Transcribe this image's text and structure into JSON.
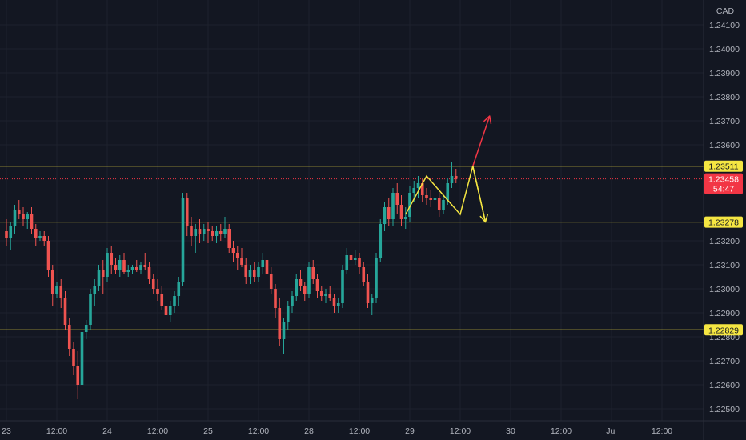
{
  "chart_data": {
    "type": "candlestick",
    "currency": "CAD",
    "y_range": [
      1.2247,
      1.2418
    ],
    "y_ticks": [
      "1.24100",
      "1.24000",
      "1.23900",
      "1.23800",
      "1.23700",
      "1.23600",
      "1.23200",
      "1.23100",
      "1.23000",
      "1.22900",
      "1.22800",
      "1.22700",
      "1.22600",
      "1.22500"
    ],
    "x_ticks": [
      {
        "label": "23",
        "t": 0
      },
      {
        "label": "12:00",
        "t": 12
      },
      {
        "label": "24",
        "t": 24
      },
      {
        "label": "12:00",
        "t": 36
      },
      {
        "label": "25",
        "t": 48
      },
      {
        "label": "12:00",
        "t": 60
      },
      {
        "label": "28",
        "t": 72
      },
      {
        "label": "12:00",
        "t": 84
      },
      {
        "label": "29",
        "t": 96
      },
      {
        "label": "12:00",
        "t": 108
      },
      {
        "label": "30",
        "t": 120
      },
      {
        "label": "12:00",
        "t": 132
      },
      {
        "label": "Jul",
        "t": 144
      },
      {
        "label": "12:00",
        "t": 156
      }
    ],
    "horizontal_levels": [
      {
        "value": 1.23511,
        "label": "1.23511",
        "color": "#f5e642"
      },
      {
        "value": 1.23278,
        "label": "1.23278",
        "color": "#f5e642"
      },
      {
        "value": 1.22829,
        "label": "1.22829",
        "color": "#f5e642"
      }
    ],
    "current_price": {
      "value": 1.23458,
      "label": "1.23458",
      "countdown": "54:47",
      "color": "#f23645"
    },
    "candles": [
      [
        1.2324,
        1.2329,
        1.2318,
        1.2321
      ],
      [
        1.2321,
        1.2328,
        1.2316,
        1.2326
      ],
      [
        1.2326,
        1.2335,
        1.2323,
        1.2333
      ],
      [
        1.2333,
        1.2337,
        1.2329,
        1.2331
      ],
      [
        1.2331,
        1.2334,
        1.2326,
        1.2329
      ],
      [
        1.2329,
        1.2332,
        1.2325,
        1.2331
      ],
      [
        1.2331,
        1.2334,
        1.2323,
        1.2325
      ],
      [
        1.2325,
        1.2327,
        1.2318,
        1.2321
      ],
      [
        1.2321,
        1.2324,
        1.232,
        1.2322
      ],
      [
        1.2322,
        1.2324,
        1.2318,
        1.232
      ],
      [
        1.232,
        1.2322,
        1.2305,
        1.2308
      ],
      [
        1.2308,
        1.231,
        1.2293,
        1.2298
      ],
      [
        1.2298,
        1.2303,
        1.2296,
        1.2301
      ],
      [
        1.2301,
        1.2304,
        1.2292,
        1.2296
      ],
      [
        1.2296,
        1.2299,
        1.2283,
        1.2285
      ],
      [
        1.2285,
        1.2288,
        1.2272,
        1.2275
      ],
      [
        1.2275,
        1.2278,
        1.2264,
        1.2268
      ],
      [
        1.2268,
        1.2274,
        1.2254,
        1.226
      ],
      [
        1.226,
        1.2284,
        1.2256,
        1.2282
      ],
      [
        1.2282,
        1.2287,
        1.2279,
        1.2285
      ],
      [
        1.2285,
        1.23,
        1.2283,
        1.2298
      ],
      [
        1.2298,
        1.2304,
        1.2293,
        1.2301
      ],
      [
        1.2301,
        1.231,
        1.2299,
        1.2308
      ],
      [
        1.2308,
        1.2312,
        1.2298,
        1.2305
      ],
      [
        1.2305,
        1.2317,
        1.2303,
        1.2315
      ],
      [
        1.2315,
        1.2318,
        1.2306,
        1.231
      ],
      [
        1.231,
        1.2313,
        1.2306,
        1.2308
      ],
      [
        1.2308,
        1.2314,
        1.2305,
        1.2312
      ],
      [
        1.2312,
        1.2315,
        1.2306,
        1.2307
      ],
      [
        1.2307,
        1.231,
        1.2305,
        1.2308
      ],
      [
        1.2308,
        1.231,
        1.2306,
        1.2309
      ],
      [
        1.2309,
        1.2312,
        1.2307,
        1.2308
      ],
      [
        1.2308,
        1.2311,
        1.2306,
        1.231
      ],
      [
        1.231,
        1.2315,
        1.2308,
        1.2309
      ],
      [
        1.2309,
        1.2311,
        1.2302,
        1.2304
      ],
      [
        1.2304,
        1.2306,
        1.2298,
        1.23
      ],
      [
        1.23,
        1.2304,
        1.2295,
        1.2298
      ],
      [
        1.2298,
        1.2301,
        1.2291,
        1.2293
      ],
      [
        1.2293,
        1.2295,
        1.2285,
        1.2289
      ],
      [
        1.2289,
        1.2295,
        1.2286,
        1.2293
      ],
      [
        1.2293,
        1.2299,
        1.229,
        1.2297
      ],
      [
        1.2297,
        1.2305,
        1.2293,
        1.2303
      ],
      [
        1.2303,
        1.234,
        1.2301,
        1.2338
      ],
      [
        1.2338,
        1.234,
        1.2322,
        1.2326
      ],
      [
        1.2326,
        1.233,
        1.2318,
        1.2322
      ],
      [
        1.2322,
        1.2327,
        1.2315,
        1.2325
      ],
      [
        1.2325,
        1.2329,
        1.2319,
        1.2323
      ],
      [
        1.2323,
        1.2327,
        1.232,
        1.2325
      ],
      [
        1.2325,
        1.2328,
        1.2319,
        1.2324
      ],
      [
        1.2324,
        1.2326,
        1.232,
        1.2322
      ],
      [
        1.2322,
        1.2326,
        1.2319,
        1.2324
      ],
      [
        1.2324,
        1.2327,
        1.232,
        1.2323
      ],
      [
        1.2323,
        1.233,
        1.2321,
        1.2325
      ],
      [
        1.2325,
        1.2327,
        1.2315,
        1.2317
      ],
      [
        1.2317,
        1.232,
        1.2311,
        1.2315
      ],
      [
        1.2315,
        1.2318,
        1.2308,
        1.2313
      ],
      [
        1.2313,
        1.2317,
        1.2309,
        1.231
      ],
      [
        1.231,
        1.2313,
        1.2302,
        1.2305
      ],
      [
        1.2305,
        1.231,
        1.2302,
        1.2308
      ],
      [
        1.2308,
        1.2311,
        1.2303,
        1.2305
      ],
      [
        1.2305,
        1.2311,
        1.2303,
        1.2309
      ],
      [
        1.2309,
        1.2315,
        1.2306,
        1.2312
      ],
      [
        1.2312,
        1.2314,
        1.2304,
        1.2306
      ],
      [
        1.2306,
        1.2309,
        1.2298,
        1.23
      ],
      [
        1.23,
        1.2302,
        1.2288,
        1.2292
      ],
      [
        1.2292,
        1.2296,
        1.2276,
        1.2279
      ],
      [
        1.2279,
        1.2288,
        1.2273,
        1.2286
      ],
      [
        1.2286,
        1.2295,
        1.2283,
        1.2293
      ],
      [
        1.2293,
        1.2299,
        1.229,
        1.2297
      ],
      [
        1.2297,
        1.2306,
        1.2295,
        1.2304
      ],
      [
        1.2304,
        1.2308,
        1.2299,
        1.2301
      ],
      [
        1.2301,
        1.2303,
        1.2295,
        1.2298
      ],
      [
        1.2298,
        1.2311,
        1.2296,
        1.2309
      ],
      [
        1.2309,
        1.2312,
        1.2302,
        1.2304
      ],
      [
        1.2304,
        1.2306,
        1.2296,
        1.2299
      ],
      [
        1.2299,
        1.2301,
        1.2295,
        1.2297
      ],
      [
        1.2297,
        1.23,
        1.2294,
        1.2298
      ],
      [
        1.2298,
        1.2301,
        1.2295,
        1.2296
      ],
      [
        1.2296,
        1.2298,
        1.229,
        1.2293
      ],
      [
        1.2293,
        1.2296,
        1.229,
        1.2294
      ],
      [
        1.2294,
        1.231,
        1.2292,
        1.2308
      ],
      [
        1.2308,
        1.2317,
        1.2306,
        1.2314
      ],
      [
        1.2314,
        1.2317,
        1.2309,
        1.2312
      ],
      [
        1.2312,
        1.2316,
        1.231,
        1.2313
      ],
      [
        1.2313,
        1.2315,
        1.2306,
        1.2309
      ],
      [
        1.2309,
        1.2311,
        1.2301,
        1.2303
      ],
      [
        1.2303,
        1.2306,
        1.2292,
        1.2294
      ],
      [
        1.2294,
        1.2298,
        1.2289,
        1.2296
      ],
      [
        1.2296,
        1.2315,
        1.2294,
        1.2313
      ],
      [
        1.2313,
        1.2329,
        1.2311,
        1.2327
      ],
      [
        1.2327,
        1.2336,
        1.2324,
        1.2334
      ],
      [
        1.2334,
        1.2338,
        1.2326,
        1.2329
      ],
      [
        1.2329,
        1.2342,
        1.2326,
        1.234
      ],
      [
        1.234,
        1.2344,
        1.2331,
        1.2335
      ],
      [
        1.2335,
        1.2339,
        1.2326,
        1.2329
      ],
      [
        1.2329,
        1.2334,
        1.2325,
        1.233
      ],
      [
        1.233,
        1.2343,
        1.2328,
        1.234
      ],
      [
        1.234,
        1.2345,
        1.2336,
        1.2342
      ],
      [
        1.2342,
        1.2347,
        1.2338,
        1.2344
      ],
      [
        1.2344,
        1.2346,
        1.2336,
        1.2339
      ],
      [
        1.2339,
        1.2342,
        1.2335,
        1.2338
      ],
      [
        1.2338,
        1.2341,
        1.2334,
        1.2337
      ],
      [
        1.2337,
        1.234,
        1.2333,
        1.2338
      ],
      [
        1.2338,
        1.234,
        1.233,
        1.2333
      ],
      [
        1.2333,
        1.2339,
        1.2331,
        1.2337
      ],
      [
        1.2337,
        1.2346,
        1.2335,
        1.2344
      ],
      [
        1.2344,
        1.2353,
        1.2342,
        1.2347
      ],
      [
        1.2347,
        1.235,
        1.2344,
        1.23458
      ]
    ],
    "annotations": [
      {
        "type": "zigzag",
        "color": "#f5e642",
        "points": [
          [
            95,
            1.2331
          ],
          [
            100,
            1.2347
          ],
          [
            106,
            1.2335
          ],
          [
            108,
            1.2331
          ],
          [
            111,
            1.23511
          ],
          [
            114,
            1.23278
          ]
        ]
      },
      {
        "type": "arrow",
        "color": "#f5e642",
        "from": [
          111,
          1.23511
        ],
        "to": [
          114,
          1.23278
        ]
      },
      {
        "type": "arrow",
        "color": "#f23645",
        "from": [
          111,
          1.23511
        ],
        "to": [
          115,
          1.2372
        ]
      }
    ],
    "bull_color": "#26a69a",
    "bear_color": "#ef5350",
    "grid": true
  }
}
